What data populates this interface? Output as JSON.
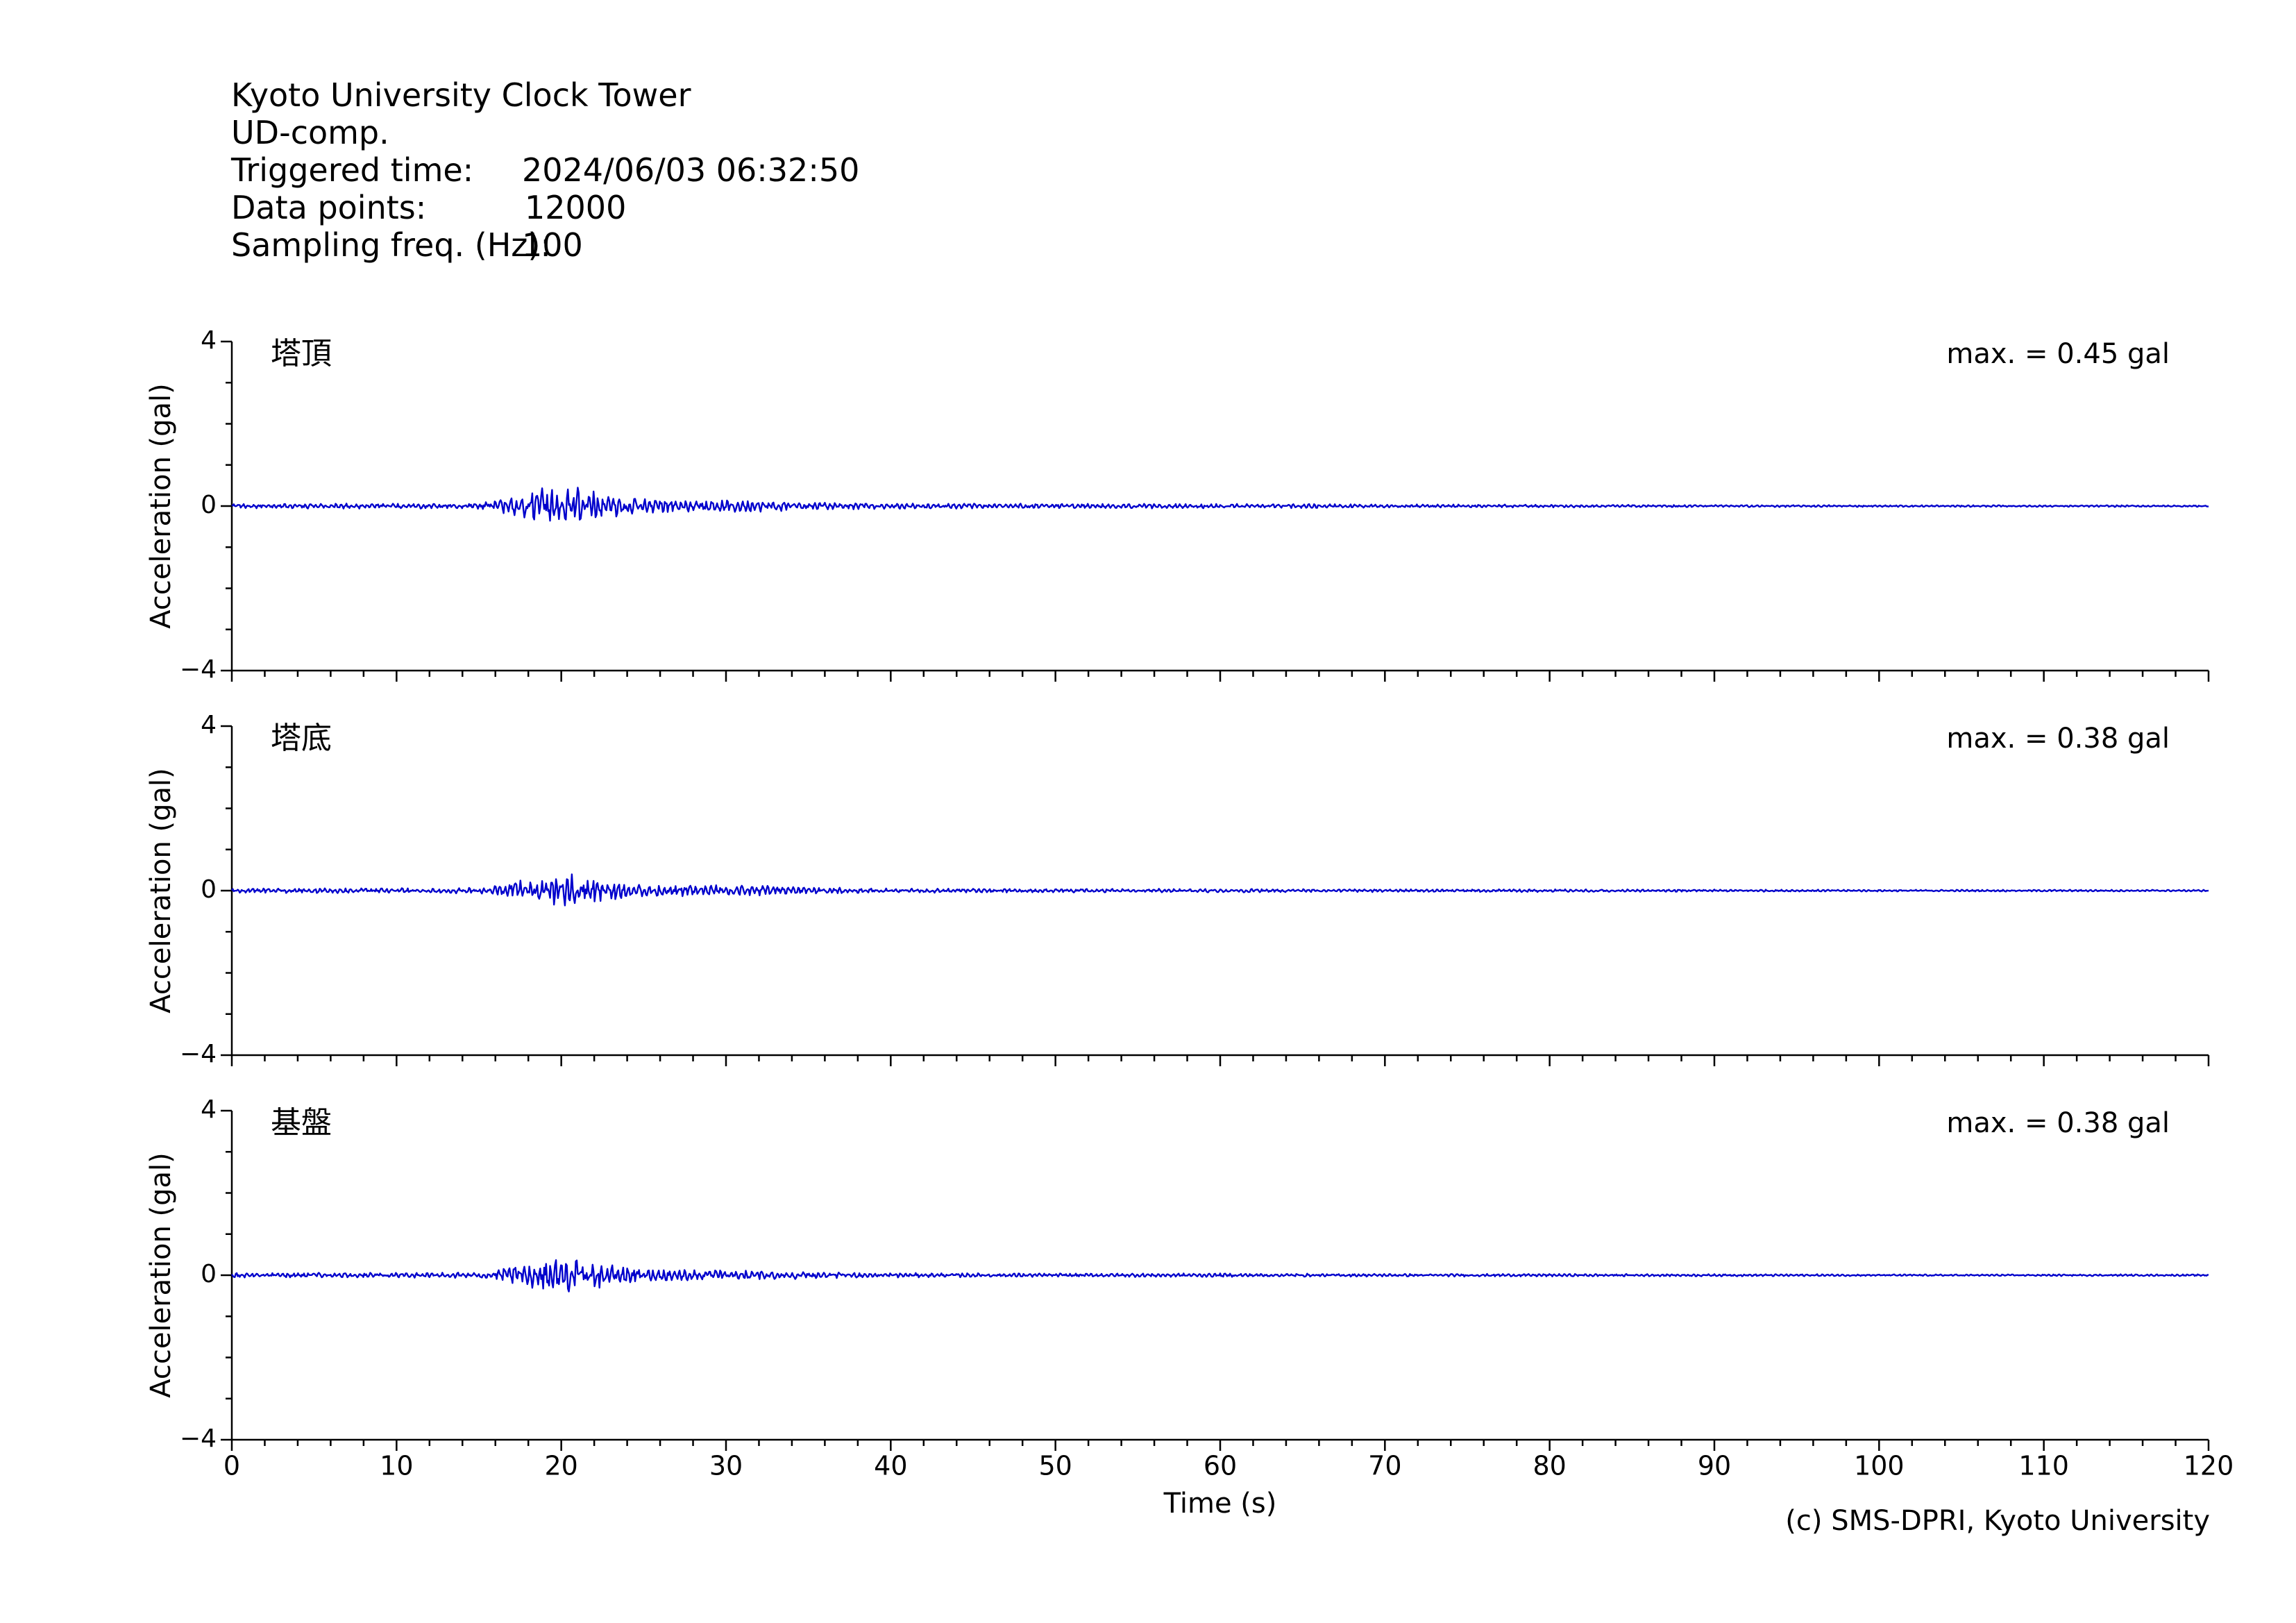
{
  "header": {
    "station": "Kyoto University Clock Tower",
    "component": "UD-comp.",
    "triggered_label": "Triggered time:",
    "triggered_value": "2024/06/03 06:32:50",
    "points_label": "Data points:",
    "points_value": "12000",
    "freq_label": "Sampling freq. (Hz):",
    "freq_value": "100"
  },
  "credit": "(c) SMS-DPRI, Kyoto University",
  "colors": {
    "trace": "#0000cc",
    "axis": "#000000"
  },
  "chart_data": [
    {
      "type": "line",
      "name": "塔頂",
      "annotation": "max. = 0.45 gal",
      "ylabel": "Acceleration (gal)",
      "xlabel": "",
      "xlim": [
        0,
        120
      ],
      "ylim": [
        -4,
        4
      ],
      "yticks": [
        -4,
        0,
        4
      ],
      "max_abs": 0.45,
      "envelope": {
        "t": [
          0,
          15,
          16,
          17,
          18,
          19,
          20,
          21,
          22,
          23,
          25,
          28,
          30,
          33,
          35,
          40,
          50,
          60,
          70,
          80,
          100,
          120
        ],
        "amp": [
          0.05,
          0.06,
          0.15,
          0.25,
          0.3,
          0.4,
          0.45,
          0.4,
          0.35,
          0.25,
          0.15,
          0.12,
          0.13,
          0.12,
          0.08,
          0.06,
          0.05,
          0.05,
          0.04,
          0.03,
          0.02,
          0.02
        ]
      }
    },
    {
      "type": "line",
      "name": "塔底",
      "annotation": "max. = 0.38 gal",
      "ylabel": "Acceleration (gal)",
      "xlabel": "",
      "xlim": [
        0,
        120
      ],
      "ylim": [
        -4,
        4
      ],
      "yticks": [
        -4,
        0,
        4
      ],
      "max_abs": 0.38,
      "envelope": {
        "t": [
          0,
          15,
          16,
          17,
          18,
          19,
          20,
          21,
          22,
          23,
          25,
          28,
          30,
          33,
          35,
          40,
          50,
          60,
          70,
          80,
          100,
          120
        ],
        "amp": [
          0.05,
          0.06,
          0.12,
          0.2,
          0.26,
          0.34,
          0.38,
          0.36,
          0.3,
          0.22,
          0.14,
          0.12,
          0.12,
          0.1,
          0.07,
          0.05,
          0.04,
          0.04,
          0.03,
          0.03,
          0.02,
          0.02
        ]
      }
    },
    {
      "type": "line",
      "name": "基盤",
      "annotation": "max. = 0.38 gal",
      "ylabel": "Acceleration (gal)",
      "xlabel": "Time (s)",
      "xlim": [
        0,
        120
      ],
      "ylim": [
        -4,
        4
      ],
      "yticks": [
        -4,
        0,
        4
      ],
      "xticks": [
        0,
        10,
        20,
        30,
        40,
        50,
        60,
        70,
        80,
        90,
        100,
        110,
        120
      ],
      "max_abs": 0.38,
      "envelope": {
        "t": [
          0,
          15,
          16,
          17,
          18,
          19,
          20,
          21,
          22,
          23,
          25,
          28,
          30,
          33,
          35,
          40,
          50,
          60,
          70,
          80,
          100,
          120
        ],
        "amp": [
          0.05,
          0.06,
          0.12,
          0.2,
          0.26,
          0.34,
          0.38,
          0.36,
          0.3,
          0.22,
          0.14,
          0.12,
          0.12,
          0.1,
          0.07,
          0.05,
          0.04,
          0.04,
          0.03,
          0.03,
          0.02,
          0.02
        ]
      }
    }
  ]
}
